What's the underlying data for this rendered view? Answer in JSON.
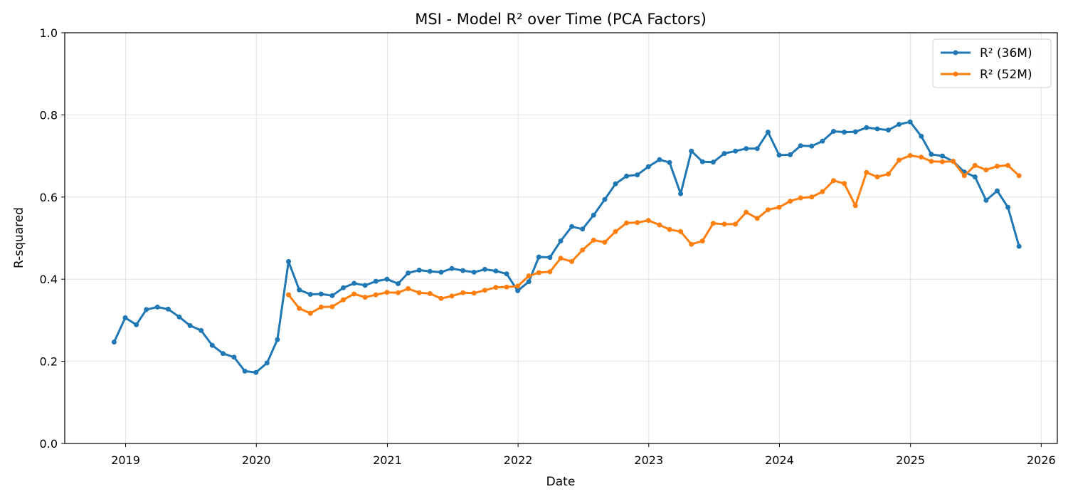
{
  "chart_data": {
    "type": "line",
    "title": "MSI - Model R² over Time (PCA Factors)",
    "xlabel": "Date",
    "ylabel": "R-squared",
    "ylim": [
      0,
      1.0
    ],
    "xlim": [
      "2018-07-15",
      "2026-02-15"
    ],
    "yticks": [
      "0.0",
      "0.2",
      "0.4",
      "0.6",
      "0.8",
      "1.0"
    ],
    "xticks": [
      "2019",
      "2020",
      "2021",
      "2022",
      "2023",
      "2024",
      "2025",
      "2026"
    ],
    "grid": true,
    "legend_position": "top-right",
    "series": [
      {
        "name": "R² (36M)",
        "color": "#1f77b4",
        "x": [
          "2018-11-30",
          "2018-12-31",
          "2019-01-31",
          "2019-02-28",
          "2019-03-31",
          "2019-04-30",
          "2019-05-31",
          "2019-06-30",
          "2019-07-31",
          "2019-08-31",
          "2019-09-30",
          "2019-10-31",
          "2019-11-30",
          "2019-12-31",
          "2020-01-31",
          "2020-02-29",
          "2020-03-31",
          "2020-04-30",
          "2020-05-31",
          "2020-06-30",
          "2020-07-31",
          "2020-08-31",
          "2020-09-30",
          "2020-10-31",
          "2020-11-30",
          "2020-12-31",
          "2021-01-31",
          "2021-02-28",
          "2021-03-31",
          "2021-04-30",
          "2021-05-31",
          "2021-06-30",
          "2021-07-31",
          "2021-08-31",
          "2021-09-30",
          "2021-10-31",
          "2021-11-30",
          "2021-12-31",
          "2022-01-31",
          "2022-02-28",
          "2022-03-31",
          "2022-04-30",
          "2022-05-31",
          "2022-06-30",
          "2022-07-31",
          "2022-08-31",
          "2022-09-30",
          "2022-10-31",
          "2022-11-30",
          "2022-12-31",
          "2023-01-31",
          "2023-02-28",
          "2023-03-31",
          "2023-04-30",
          "2023-05-31",
          "2023-06-30",
          "2023-07-31",
          "2023-08-31",
          "2023-09-30",
          "2023-10-31",
          "2023-11-30",
          "2023-12-31",
          "2024-01-31",
          "2024-02-29",
          "2024-03-31",
          "2024-04-30",
          "2024-05-31",
          "2024-06-30",
          "2024-07-31",
          "2024-08-31",
          "2024-09-30",
          "2024-10-31",
          "2024-11-30",
          "2024-12-31",
          "2025-01-31",
          "2025-02-28",
          "2025-03-31",
          "2025-04-30",
          "2025-05-31",
          "2025-06-30",
          "2025-07-31",
          "2025-08-31",
          "2025-09-30",
          "2025-10-31"
        ],
        "values": [
          0.247,
          0.306,
          0.289,
          0.326,
          0.332,
          0.327,
          0.308,
          0.287,
          0.275,
          0.239,
          0.219,
          0.21,
          0.176,
          0.173,
          0.196,
          0.253,
          0.443,
          0.374,
          0.363,
          0.364,
          0.36,
          0.379,
          0.39,
          0.385,
          0.395,
          0.4,
          0.389,
          0.415,
          0.422,
          0.419,
          0.417,
          0.426,
          0.421,
          0.417,
          0.424,
          0.42,
          0.413,
          0.372,
          0.394,
          0.454,
          0.453,
          0.493,
          0.528,
          0.522,
          0.556,
          0.594,
          0.632,
          0.651,
          0.654,
          0.674,
          0.691,
          0.684,
          0.608,
          0.712,
          0.686,
          0.685,
          0.706,
          0.712,
          0.718,
          0.718,
          0.758,
          0.702,
          0.703,
          0.725,
          0.724,
          0.736,
          0.76,
          0.758,
          0.759,
          0.769,
          0.766,
          0.763,
          0.777,
          0.783,
          0.748,
          0.704,
          0.7,
          0.687,
          0.661,
          0.649,
          0.592,
          0.615,
          0.575,
          0.48
        ]
      },
      {
        "name": "R² (52M)",
        "color": "#ff7f0e",
        "x": [
          "2020-03-31",
          "2020-04-30",
          "2020-05-31",
          "2020-06-30",
          "2020-07-31",
          "2020-08-31",
          "2020-09-30",
          "2020-10-31",
          "2020-11-30",
          "2020-12-31",
          "2021-01-31",
          "2021-02-28",
          "2021-03-31",
          "2021-04-30",
          "2021-05-31",
          "2021-06-30",
          "2021-07-31",
          "2021-08-31",
          "2021-09-30",
          "2021-10-31",
          "2021-11-30",
          "2021-12-31",
          "2022-01-31",
          "2022-02-28",
          "2022-03-31",
          "2022-04-30",
          "2022-05-31",
          "2022-06-30",
          "2022-07-31",
          "2022-08-31",
          "2022-09-30",
          "2022-10-31",
          "2022-11-30",
          "2022-12-31",
          "2023-01-31",
          "2023-02-28",
          "2023-03-31",
          "2023-04-30",
          "2023-05-31",
          "2023-06-30",
          "2023-07-31",
          "2023-08-31",
          "2023-09-30",
          "2023-10-31",
          "2023-11-30",
          "2023-12-31",
          "2024-01-31",
          "2024-02-29",
          "2024-03-31",
          "2024-04-30",
          "2024-05-31",
          "2024-06-30",
          "2024-07-31",
          "2024-08-31",
          "2024-09-30",
          "2024-10-31",
          "2024-11-30",
          "2024-12-31",
          "2025-01-31",
          "2025-02-28",
          "2025-03-31",
          "2025-04-30",
          "2025-05-31",
          "2025-06-30",
          "2025-07-31",
          "2025-08-31",
          "2025-09-30",
          "2025-10-31"
        ],
        "values": [
          0.362,
          0.329,
          0.317,
          0.332,
          0.333,
          0.35,
          0.364,
          0.356,
          0.362,
          0.368,
          0.367,
          0.377,
          0.367,
          0.365,
          0.353,
          0.359,
          0.367,
          0.366,
          0.373,
          0.38,
          0.381,
          0.383,
          0.408,
          0.416,
          0.418,
          0.451,
          0.443,
          0.471,
          0.495,
          0.49,
          0.516,
          0.537,
          0.538,
          0.543,
          0.532,
          0.521,
          0.516,
          0.485,
          0.493,
          0.536,
          0.534,
          0.534,
          0.563,
          0.548,
          0.569,
          0.575,
          0.59,
          0.598,
          0.6,
          0.613,
          0.64,
          0.633,
          0.579,
          0.66,
          0.649,
          0.656,
          0.69,
          0.701,
          0.697,
          0.687,
          0.686,
          0.687,
          0.652,
          0.677,
          0.666,
          0.675,
          0.677,
          0.652
        ]
      }
    ]
  }
}
